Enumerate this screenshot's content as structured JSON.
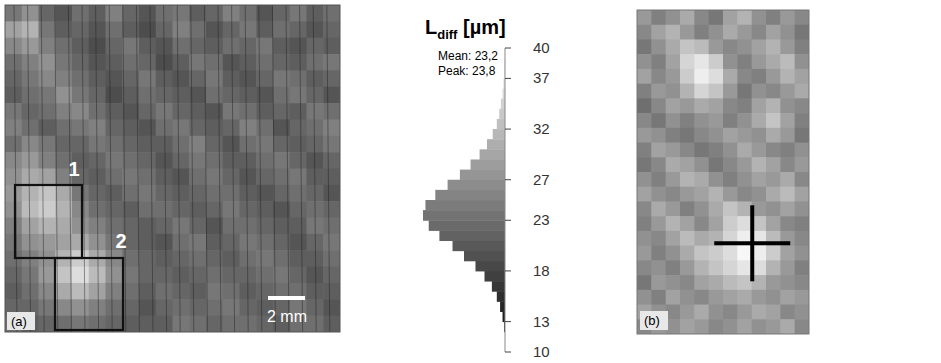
{
  "chart_data": [
    {
      "type": "heatmap",
      "panel": "(a)",
      "scale_bar": "2 mm",
      "regions": [
        {
          "label": "1"
        },
        {
          "label": "2"
        }
      ],
      "cells": [
        [
          24,
          27,
          22,
          20,
          23,
          21,
          25,
          22,
          20,
          23,
          24,
          21,
          22,
          25,
          23,
          20,
          22,
          24,
          21,
          23
        ],
        [
          29,
          31,
          24,
          21,
          22,
          20,
          23,
          21,
          19,
          22,
          25,
          23,
          20,
          22,
          24,
          21,
          23,
          22,
          20,
          22
        ],
        [
          26,
          28,
          25,
          23,
          21,
          19,
          22,
          24,
          21,
          20,
          23,
          22,
          21,
          23,
          22,
          24,
          21,
          20,
          22,
          21
        ],
        [
          23,
          25,
          27,
          24,
          22,
          20,
          21,
          23,
          22,
          19,
          21,
          24,
          23,
          20,
          21,
          23,
          22,
          21,
          23,
          24
        ],
        [
          22,
          24,
          26,
          25,
          23,
          21,
          20,
          22,
          24,
          21,
          20,
          22,
          24,
          21,
          20,
          22,
          24,
          23,
          21,
          22
        ],
        [
          21,
          23,
          24,
          27,
          24,
          22,
          19,
          21,
          23,
          22,
          21,
          20,
          23,
          22,
          21,
          20,
          23,
          24,
          22,
          20
        ],
        [
          24,
          22,
          23,
          25,
          26,
          23,
          21,
          20,
          22,
          24,
          22,
          21,
          20,
          24,
          23,
          21,
          22,
          21,
          24,
          23
        ],
        [
          25,
          23,
          21,
          23,
          24,
          25,
          22,
          21,
          20,
          23,
          24,
          22,
          21,
          22,
          25,
          23,
          20,
          22,
          23,
          25
        ],
        [
          23,
          26,
          24,
          22,
          22,
          24,
          23,
          22,
          21,
          21,
          23,
          25,
          22,
          20,
          23,
          24,
          22,
          21,
          22,
          24
        ],
        [
          26,
          28,
          25,
          23,
          21,
          22,
          24,
          23,
          22,
          20,
          22,
          24,
          23,
          21,
          21,
          23,
          24,
          22,
          20,
          22
        ],
        [
          27,
          30,
          29,
          25,
          22,
          21,
          23,
          24,
          23,
          21,
          20,
          23,
          24,
          22,
          20,
          22,
          23,
          24,
          21,
          21
        ],
        [
          28,
          31,
          33,
          30,
          24,
          22,
          21,
          23,
          24,
          22,
          21,
          22,
          23,
          23,
          21,
          20,
          22,
          23,
          22,
          20
        ],
        [
          27,
          32,
          34,
          31,
          26,
          23,
          22,
          21,
          23,
          23,
          22,
          21,
          22,
          24,
          22,
          21,
          20,
          22,
          23,
          22
        ],
        [
          25,
          29,
          31,
          30,
          27,
          25,
          23,
          22,
          21,
          22,
          24,
          22,
          20,
          23,
          23,
          22,
          21,
          21,
          24,
          23
        ],
        [
          24,
          27,
          28,
          29,
          30,
          27,
          24,
          22,
          21,
          20,
          23,
          24,
          21,
          22,
          24,
          23,
          22,
          20,
          22,
          24
        ],
        [
          23,
          25,
          27,
          31,
          34,
          30,
          26,
          23,
          22,
          21,
          22,
          23,
          22,
          21,
          23,
          24,
          23,
          21,
          21,
          23
        ],
        [
          22,
          24,
          28,
          33,
          36,
          32,
          27,
          24,
          22,
          22,
          21,
          22,
          23,
          22,
          22,
          23,
          24,
          22,
          20,
          22
        ],
        [
          21,
          23,
          26,
          30,
          32,
          29,
          25,
          23,
          21,
          23,
          22,
          21,
          24,
          23,
          21,
          22,
          23,
          23,
          21,
          21
        ],
        [
          22,
          22,
          24,
          26,
          27,
          25,
          23,
          22,
          20,
          22,
          23,
          22,
          23,
          24,
          22,
          21,
          22,
          24,
          22,
          20
        ],
        [
          23,
          21,
          22,
          23,
          24,
          23,
          22,
          21,
          21,
          21,
          24,
          23,
          22,
          23,
          23,
          22,
          21,
          23,
          23,
          21
        ]
      ],
      "colorbar": {
        "title": "Ldiff [µm]",
        "title_subscript": "diff",
        "range": [
          10,
          40
        ],
        "ticks": [
          40,
          37,
          32,
          27,
          23,
          18,
          13,
          10
        ],
        "stats": [
          "Mean: 23,2",
          "Peak: 23,8"
        ],
        "bins": [
          10,
          11,
          12,
          13,
          14,
          15,
          16,
          17,
          18,
          19,
          20,
          21,
          22,
          23,
          24,
          25,
          26,
          27,
          28,
          29,
          30,
          31,
          32,
          33,
          34,
          35,
          36,
          37,
          38,
          39,
          40
        ],
        "counts": [
          0,
          0,
          1,
          3,
          6,
          10,
          16,
          25,
          36,
          50,
          64,
          80,
          93,
          100,
          97,
          85,
          70,
          55,
          42,
          31,
          22,
          15,
          10,
          7,
          5,
          3,
          2,
          1,
          1,
          0
        ]
      }
    },
    {
      "type": "heatmap",
      "panel": "(b)",
      "marker": "cross",
      "cells": [
        [
          28,
          25,
          27,
          30,
          26,
          24,
          29,
          31,
          27,
          25,
          28,
          26
        ],
        [
          26,
          29,
          31,
          28,
          25,
          27,
          30,
          28,
          26,
          29,
          27,
          24
        ],
        [
          24,
          27,
          30,
          33,
          32,
          28,
          26,
          27,
          29,
          31,
          28,
          25
        ],
        [
          27,
          25,
          29,
          35,
          37,
          34,
          27,
          25,
          28,
          30,
          32,
          27
        ],
        [
          29,
          26,
          28,
          34,
          38,
          36,
          30,
          26,
          25,
          28,
          31,
          29
        ],
        [
          25,
          28,
          27,
          31,
          35,
          33,
          28,
          24,
          27,
          26,
          28,
          30
        ],
        [
          23,
          26,
          29,
          28,
          30,
          29,
          26,
          25,
          29,
          31,
          27,
          26
        ],
        [
          26,
          24,
          27,
          25,
          27,
          28,
          25,
          27,
          30,
          33,
          29,
          25
        ],
        [
          28,
          27,
          25,
          24,
          26,
          27,
          29,
          28,
          27,
          30,
          28,
          24
        ],
        [
          25,
          29,
          28,
          26,
          24,
          25,
          27,
          30,
          28,
          26,
          25,
          27
        ],
        [
          24,
          26,
          30,
          29,
          27,
          24,
          26,
          28,
          31,
          29,
          26,
          28
        ],
        [
          27,
          25,
          28,
          31,
          30,
          27,
          25,
          27,
          29,
          28,
          30,
          26
        ],
        [
          29,
          27,
          26,
          28,
          29,
          31,
          28,
          26,
          27,
          30,
          32,
          29
        ],
        [
          26,
          30,
          28,
          25,
          27,
          30,
          33,
          31,
          28,
          27,
          29,
          27
        ],
        [
          25,
          28,
          31,
          29,
          26,
          29,
          34,
          36,
          33,
          29,
          26,
          25
        ],
        [
          27,
          26,
          29,
          32,
          30,
          31,
          35,
          38,
          37,
          32,
          28,
          26
        ],
        [
          28,
          25,
          27,
          30,
          33,
          34,
          36,
          39,
          38,
          34,
          29,
          27
        ],
        [
          26,
          27,
          25,
          28,
          31,
          33,
          35,
          37,
          36,
          31,
          28,
          25
        ],
        [
          24,
          28,
          27,
          26,
          29,
          30,
          32,
          33,
          31,
          28,
          27,
          26
        ],
        [
          27,
          25,
          29,
          27,
          26,
          28,
          29,
          30,
          28,
          27,
          29,
          28
        ],
        [
          29,
          27,
          26,
          28,
          30,
          27,
          26,
          28,
          30,
          29,
          26,
          27
        ],
        [
          26,
          28,
          27,
          29,
          28,
          26,
          27,
          29,
          27,
          28,
          30,
          26
        ]
      ]
    }
  ]
}
